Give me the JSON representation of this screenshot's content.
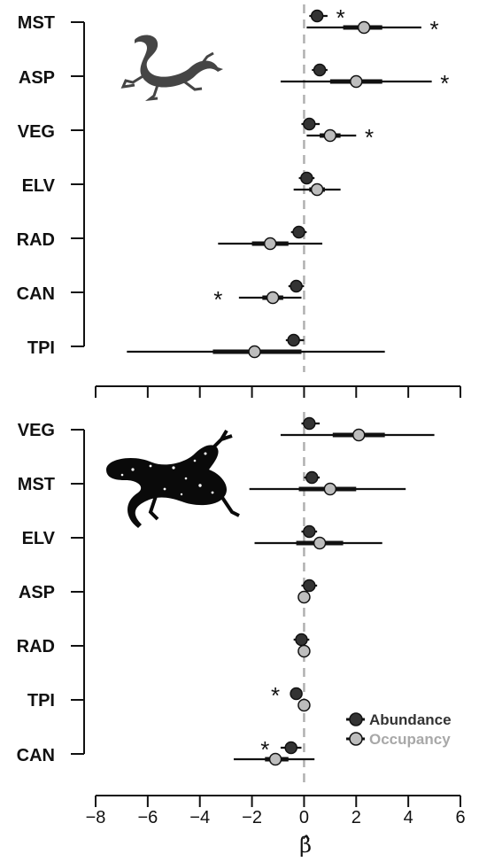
{
  "chart_data": [
    {
      "type": "forest",
      "panel": "top",
      "species_icon": "salamander-silhouette-icon",
      "categories": [
        "MST",
        "ASP",
        "VEG",
        "ELV",
        "RAD",
        "CAN",
        "TPI"
      ],
      "series": [
        {
          "name": "Abundance",
          "color": "#333333",
          "estimates": [
            0.5,
            0.6,
            0.2,
            0.1,
            -0.2,
            -0.3,
            -0.4
          ],
          "ci95": [
            [
              0.2,
              0.9
            ],
            [
              0.3,
              0.9
            ],
            [
              -0.1,
              0.6
            ],
            [
              -0.2,
              0.4
            ],
            [
              -0.5,
              0.1
            ],
            [
              -0.6,
              0.0
            ],
            [
              -0.7,
              0.0
            ]
          ],
          "ci50": [
            [
              0.35,
              0.7
            ],
            [
              0.45,
              0.8
            ],
            [
              0.05,
              0.35
            ],
            [
              -0.05,
              0.25
            ],
            [
              -0.35,
              -0.05
            ],
            [
              -0.45,
              -0.15
            ],
            [
              -0.55,
              -0.25
            ]
          ],
          "significant_stars": [
            true,
            false,
            false,
            false,
            false,
            false,
            false
          ]
        },
        {
          "name": "Occupancy",
          "color": "#bdbdbd",
          "estimates": [
            2.3,
            2.0,
            1.0,
            0.5,
            -1.3,
            -1.2,
            -1.9
          ],
          "ci95": [
            [
              0.1,
              4.5
            ],
            [
              -0.9,
              4.9
            ],
            [
              0.1,
              2.0
            ],
            [
              -0.4,
              1.4
            ],
            [
              -3.3,
              0.7
            ],
            [
              -2.5,
              -0.1
            ],
            [
              -6.8,
              3.1
            ]
          ],
          "ci50": [
            [
              1.5,
              3.0
            ],
            [
              1.0,
              3.0
            ],
            [
              0.6,
              1.4
            ],
            [
              0.2,
              0.8
            ],
            [
              -2.0,
              -0.6
            ],
            [
              -1.6,
              -0.8
            ],
            [
              -3.5,
              -0.1
            ]
          ],
          "significant_stars": [
            true,
            true,
            true,
            false,
            false,
            true,
            false
          ]
        }
      ],
      "star_text": "*"
    },
    {
      "type": "forest",
      "panel": "bottom",
      "species_icon": "spotted-salamander-silhouette-icon",
      "categories": [
        "VEG",
        "MST",
        "ELV",
        "ASP",
        "RAD",
        "TPI",
        "CAN"
      ],
      "series": [
        {
          "name": "Abundance",
          "color": "#333333",
          "estimates": [
            0.2,
            0.3,
            0.2,
            0.2,
            -0.1,
            -0.3,
            -0.5
          ],
          "ci95": [
            [
              -0.1,
              0.6
            ],
            [
              0.0,
              0.6
            ],
            [
              -0.1,
              0.5
            ],
            [
              -0.1,
              0.5
            ],
            [
              -0.4,
              0.2
            ],
            [
              -0.5,
              -0.1
            ],
            [
              -0.9,
              -0.1
            ]
          ],
          "ci50": [
            [
              0.05,
              0.35
            ],
            [
              0.15,
              0.45
            ],
            [
              0.05,
              0.35
            ],
            [
              0.05,
              0.35
            ],
            [
              -0.25,
              0.05
            ],
            [
              -0.4,
              -0.2
            ],
            [
              -0.7,
              -0.3
            ]
          ],
          "significant_stars": [
            false,
            false,
            false,
            false,
            false,
            true,
            true
          ]
        },
        {
          "name": "Occupancy",
          "color": "#bdbdbd",
          "estimates": [
            2.1,
            1.0,
            0.6,
            0.0,
            0.0,
            0.0,
            -1.1
          ],
          "ci95": [
            [
              -0.9,
              5.0
            ],
            [
              -2.1,
              3.9
            ],
            [
              -1.9,
              3.0
            ],
            [
              0.0,
              0.0
            ],
            [
              0.0,
              0.0
            ],
            [
              0.0,
              0.0
            ],
            [
              -2.7,
              0.4
            ]
          ],
          "ci50": [
            [
              1.1,
              3.1
            ],
            [
              -0.2,
              2.0
            ],
            [
              -0.3,
              1.5
            ],
            [
              0.0,
              0.0
            ],
            [
              0.0,
              0.0
            ],
            [
              0.0,
              0.0
            ],
            [
              -1.5,
              -0.6
            ]
          ],
          "significant_stars": [
            false,
            false,
            false,
            false,
            false,
            false,
            false
          ]
        }
      ],
      "star_text": "*"
    }
  ],
  "axis": {
    "xlim": [
      -8,
      6
    ],
    "ticks": [
      -8,
      -6,
      -4,
      -2,
      0,
      2,
      4,
      6
    ],
    "tick_labels": [
      "−8",
      "−6",
      "−4",
      "−2",
      "0",
      "2",
      "4",
      "6"
    ],
    "xlabel": "β̂",
    "zero_line": "dashed"
  },
  "legend": {
    "placement": "bottom-right",
    "entries": [
      {
        "label": "Abundance",
        "color": "#333333"
      },
      {
        "label": "Occupancy",
        "color": "#bdbdbd"
      }
    ]
  }
}
